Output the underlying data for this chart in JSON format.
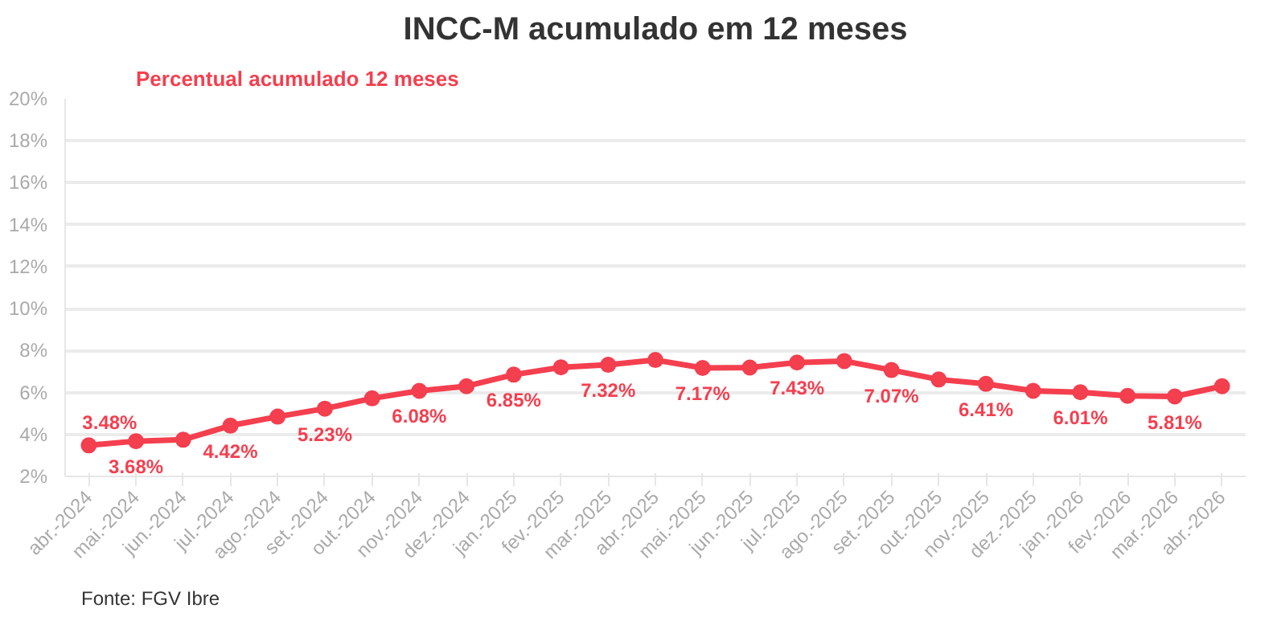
{
  "chart_data": {
    "type": "line",
    "title": "INCC-M acumulado em 12 meses",
    "subtitle": "Percentual acumulado 12 meses",
    "annotations": [
      "Fonte: FGV Ibre"
    ],
    "categories": [
      "abr.-2024",
      "mai.-2024",
      "jun.-2024",
      "jul.-2024",
      "ago.-2024",
      "set.-2024",
      "out.-2024",
      "nov.-2024",
      "dez.-2024",
      "jan.-2025",
      "fev.-2025",
      "mar.-2025",
      "abr.-2025",
      "mai.-2025",
      "jun.-2025",
      "jul.-2025",
      "ago.-2025",
      "set.-2025",
      "out.-2025",
      "nov.-2025",
      "dez.-2025",
      "jan.-2026",
      "fev.-2026",
      "mar.-2026",
      "abr.-2026"
    ],
    "series": [
      {
        "color": "#f43f4f",
        "values": [
          3.48,
          3.68,
          3.75,
          4.42,
          4.85,
          5.23,
          5.72,
          6.08,
          6.3,
          6.85,
          7.2,
          7.32,
          7.55,
          7.17,
          7.19,
          7.43,
          7.5,
          7.07,
          6.62,
          6.41,
          6.08,
          6.01,
          5.84,
          5.81,
          6.3
        ],
        "value_labels": [
          "3.48%",
          "3.68%",
          null,
          "4.42%",
          null,
          "5.23%",
          null,
          "6.08%",
          null,
          "6.85%",
          null,
          "7.32%",
          null,
          "7.17%",
          null,
          "7.43%",
          null,
          "7.07%",
          null,
          "6.41%",
          null,
          "6.01%",
          null,
          "5.81%",
          null
        ]
      }
    ],
    "ylim": [
      2,
      20
    ],
    "yticks": [
      {
        "value": 2,
        "label": "2%"
      },
      {
        "value": 4,
        "label": "4%"
      },
      {
        "value": 6,
        "label": "6%"
      },
      {
        "value": 8,
        "label": "8%"
      },
      {
        "value": 10,
        "label": "10%"
      },
      {
        "value": 12,
        "label": "12%"
      },
      {
        "value": 14,
        "label": "14%"
      },
      {
        "value": 16,
        "label": "16%"
      },
      {
        "value": 18,
        "label": "18%"
      },
      {
        "value": 20,
        "label": "20%"
      }
    ],
    "grid": "y",
    "marker": "circle",
    "line_style": "solid"
  }
}
